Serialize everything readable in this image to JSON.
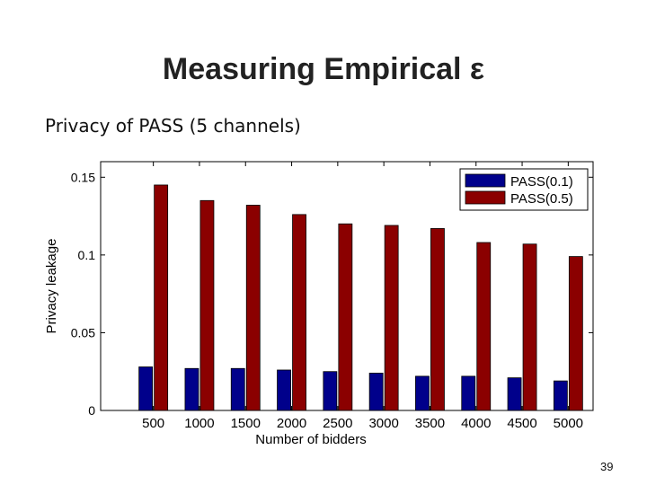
{
  "slide": {
    "title": "Measuring Empirical ε",
    "subtitle": "Privacy of PASS (5 channels)",
    "page_number": "39"
  },
  "chart_data": {
    "type": "bar",
    "title": "",
    "xlabel": "Number of bidders",
    "ylabel": "Privacy leakage",
    "categories": [
      "500",
      "1000",
      "1500",
      "2000",
      "2500",
      "3000",
      "3500",
      "4000",
      "4500",
      "5000"
    ],
    "series": [
      {
        "name": "PASS(0.1)",
        "color": "#00008b",
        "values": [
          0.028,
          0.027,
          0.027,
          0.026,
          0.025,
          0.024,
          0.022,
          0.022,
          0.021,
          0.019
        ]
      },
      {
        "name": "PASS(0.5)",
        "color": "#8b0000",
        "values": [
          0.145,
          0.135,
          0.132,
          0.126,
          0.12,
          0.119,
          0.117,
          0.108,
          0.107,
          0.099
        ]
      }
    ],
    "ylim": [
      0,
      0.16
    ],
    "yticks": [
      "0",
      "0.05",
      "0.1",
      "0.15"
    ],
    "legend": "top-right",
    "grid": false
  }
}
